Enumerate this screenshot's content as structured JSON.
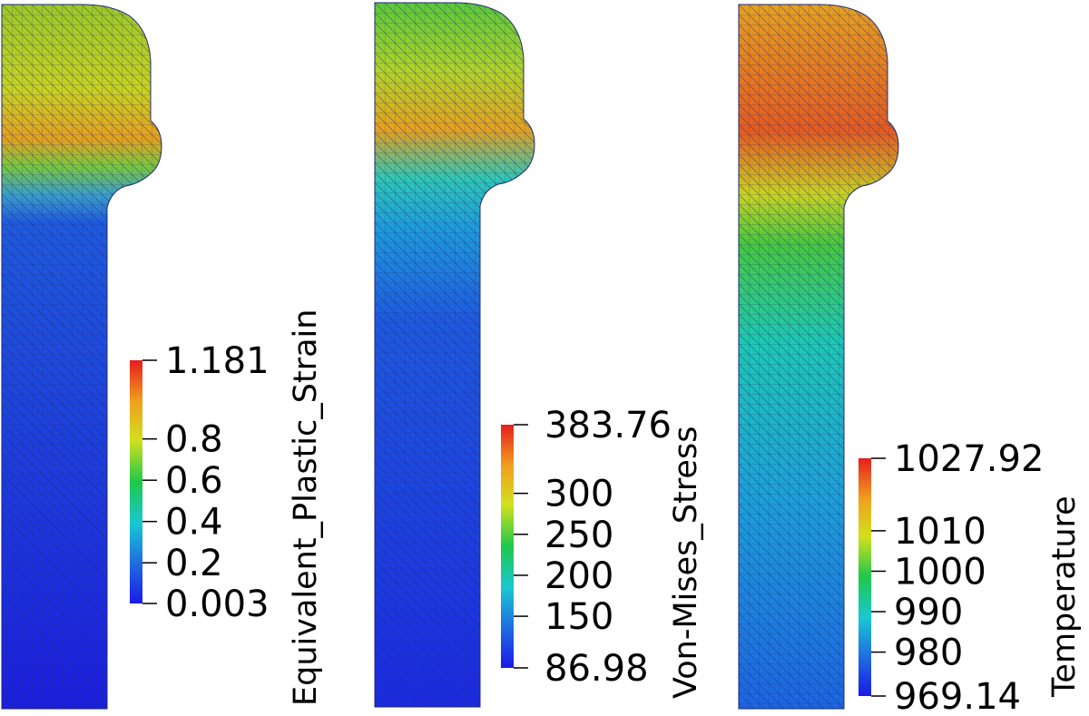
{
  "panels": [
    {
      "id": "strain",
      "title": "Equivalent_Plastic_Strain",
      "range": [
        0.003,
        1.181
      ],
      "ticks": [
        {
          "value": 1.181,
          "label": "1.181"
        },
        {
          "value": 0.8,
          "label": "0.8"
        },
        {
          "value": 0.6,
          "label": "0.6"
        },
        {
          "value": 0.4,
          "label": "0.4"
        },
        {
          "value": 0.2,
          "label": "0.2"
        },
        {
          "value": 0.003,
          "label": "0.003"
        }
      ]
    },
    {
      "id": "stress",
      "title": "Von-Mises_Stress",
      "range": [
        86.98,
        383.76
      ],
      "ticks": [
        {
          "value": 383.76,
          "label": "383.76"
        },
        {
          "value": 300,
          "label": "300"
        },
        {
          "value": 250,
          "label": "250"
        },
        {
          "value": 200,
          "label": "200"
        },
        {
          "value": 150,
          "label": "150"
        },
        {
          "value": 86.98,
          "label": "86.98"
        }
      ]
    },
    {
      "id": "temperature",
      "title": "Temperature",
      "range": [
        969.14,
        1027.92
      ],
      "ticks": [
        {
          "value": 1027.92,
          "label": "1027.92"
        },
        {
          "value": 1010,
          "label": "1010"
        },
        {
          "value": 1000,
          "label": "1000"
        },
        {
          "value": 990,
          "label": "990"
        },
        {
          "value": 980,
          "label": "980"
        },
        {
          "value": 969.14,
          "label": "969.14"
        }
      ]
    }
  ],
  "colormap": [
    "#1a1ae6",
    "#1f6fe0",
    "#19c8d2",
    "#1ec84a",
    "#d2e01e",
    "#f0a01e",
    "#e61e1e"
  ],
  "mesh_color": "#1c2a6e"
}
